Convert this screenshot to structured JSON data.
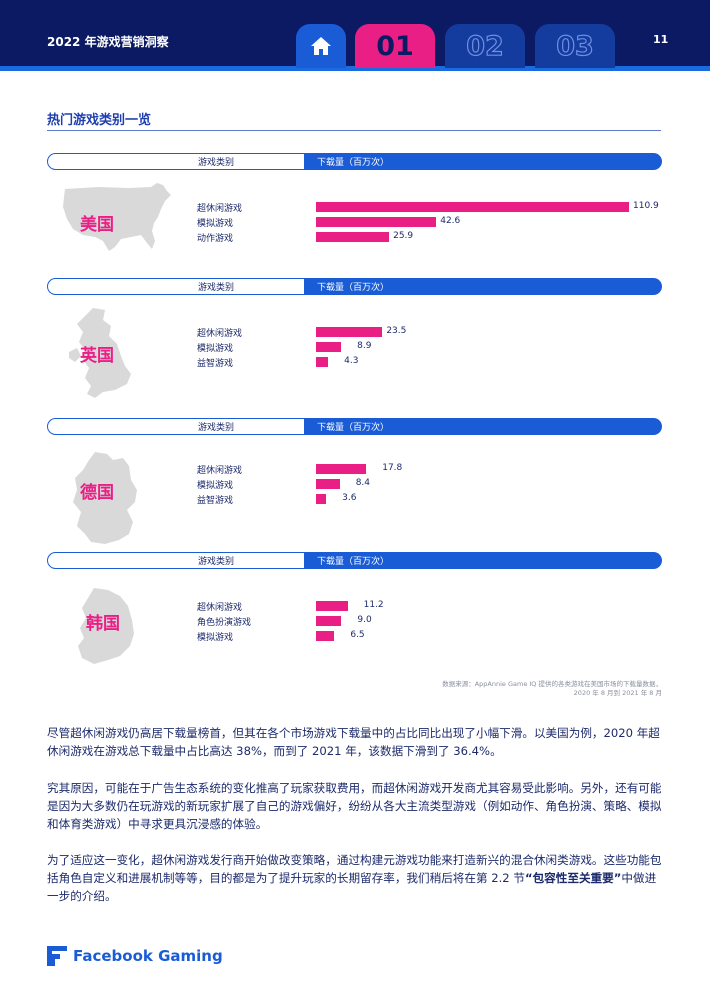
{
  "header": {
    "doc_title": "2022 年游戏营销洞察",
    "page_number": "11",
    "tabs": [
      {
        "label": "",
        "icon": "home-icon",
        "active": false
      },
      {
        "label": "01",
        "active": true
      },
      {
        "label": "02",
        "active": false
      },
      {
        "label": "03",
        "active": false
      }
    ]
  },
  "section": {
    "title": "热门游戏类别一览"
  },
  "table_header": {
    "category_col": "游戏类别",
    "downloads_col": "下载量（百万次）"
  },
  "colors": {
    "navy": "#0b1a63",
    "blue": "#1a5cd6",
    "pink": "#ea1f86"
  },
  "chart_data": [
    {
      "type": "bar",
      "title": "美国",
      "xlabel": "下载量（百万次）",
      "ylabel": "游戏类别",
      "categories": [
        "超休闲游戏",
        "模拟游戏",
        "动作游戏"
      ],
      "values": [
        110.9,
        42.6,
        25.9
      ],
      "value_labels": [
        "110.9",
        "42.6",
        "25.9"
      ],
      "xlim": [
        0,
        110.9
      ]
    },
    {
      "type": "bar",
      "title": "英国",
      "xlabel": "下载量（百万次）",
      "ylabel": "游戏类别",
      "categories": [
        "超休闲游戏",
        "模拟游戏",
        "益智游戏"
      ],
      "values": [
        23.5,
        8.9,
        4.3
      ],
      "value_labels": [
        "23.5",
        "8.9",
        "4.3"
      ],
      "xlim": [
        0,
        110.9
      ]
    },
    {
      "type": "bar",
      "title": "德国",
      "xlabel": "下载量（百万次）",
      "ylabel": "游戏类别",
      "categories": [
        "超休闲游戏",
        "模拟游戏",
        "益智游戏"
      ],
      "values": [
        17.8,
        8.4,
        3.6
      ],
      "value_labels": [
        "17.8",
        "8.4",
        "3.6"
      ],
      "xlim": [
        0,
        110.9
      ]
    },
    {
      "type": "bar",
      "title": "韩国",
      "xlabel": "下载量（百万次）",
      "ylabel": "游戏类别",
      "categories": [
        "超休闲游戏",
        "角色扮演游戏",
        "模拟游戏"
      ],
      "values": [
        11.2,
        9.0,
        6.5
      ],
      "value_labels": [
        "11.2",
        "9.0",
        "6.5"
      ],
      "xlim": [
        0,
        110.9
      ]
    }
  ],
  "source": {
    "line1": "数据来源：AppAnnie Game IQ 提供的各类游戏在美国市场的下载量数据，",
    "line2": "2020 年 8 月到 2021 年 8 月"
  },
  "paragraphs": {
    "p1": "尽管超休闲游戏仍高居下载量榜首，但其在各个市场游戏下载量中的占比同比出现了小幅下滑。以美国为例，2020 年超休闲游戏在游戏总下载量中占比高达 38%，而到了 2021 年，该数据下滑到了 36.4%。",
    "p2": "究其原因，可能在于广告生态系统的变化推高了玩家获取费用，而超休闲游戏开发商尤其容易受此影响。另外，还有可能是因为大多数仍在玩游戏的新玩家扩展了自己的游戏偏好，纷纷从各大主流类型游戏（例如动作、角色扮演、策略、模拟和体育类游戏）中寻求更具沉浸感的体验。",
    "p3_text": "为了适应这一变化，超休闲游戏发行商开始做改变策略，通过构建元游戏功能来打造新兴的混合休闲类游戏。这些功能包括角色自定义和进展机制等等，目的都是为了提升玩家的长期留存率，我们稍后将在第 2.2 节",
    "p3_bold": "“包容性至关重要”",
    "p3_end": "中做进一步的介绍。"
  },
  "footer": {
    "brand": "Facebook Gaming"
  }
}
